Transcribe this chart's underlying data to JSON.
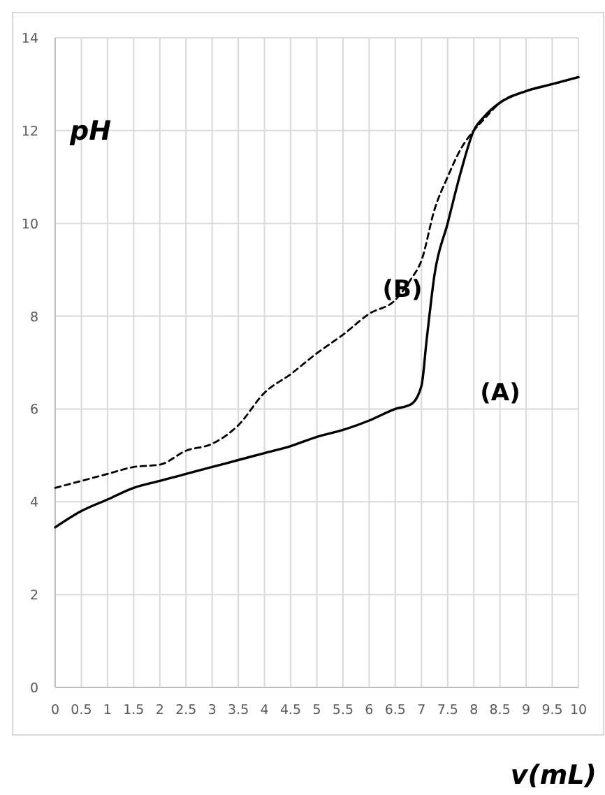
{
  "chart_data": {
    "type": "line",
    "xlabel": "v(mL)",
    "ylabel": "pH",
    "xlim": [
      0,
      10
    ],
    "ylim": [
      0,
      14
    ],
    "xticks": [
      0,
      0.5,
      1,
      1.5,
      2,
      2.5,
      3,
      3.5,
      4,
      4.5,
      5,
      5.5,
      6,
      6.5,
      7,
      7.5,
      8,
      8.5,
      9,
      9.5,
      10
    ],
    "yticks": [
      0,
      2,
      4,
      6,
      8,
      10,
      12,
      14
    ],
    "grid": true,
    "marker": "none",
    "series": [
      {
        "color": "#000000",
        "line_style": "solid",
        "x": [
          0,
          0.5,
          1,
          1.5,
          2,
          2.5,
          3,
          3.5,
          4,
          4.5,
          5,
          5.5,
          6,
          6.5,
          6.8,
          7,
          7.1,
          7.25,
          7.5,
          7.75,
          8,
          8.2,
          8.5,
          9,
          9.5,
          10
        ],
        "values": [
          3.45,
          3.8,
          4.05,
          4.3,
          4.45,
          4.6,
          4.75,
          4.9,
          5.05,
          5.2,
          5.4,
          5.55,
          5.75,
          6.0,
          6.1,
          6.5,
          7.5,
          8.9,
          10.0,
          11.1,
          12.0,
          12.3,
          12.6,
          12.85,
          13.0,
          13.15
        ]
      },
      {
        "color": "#000000",
        "line_style": "dashed",
        "x": [
          0,
          0.5,
          1,
          1.5,
          2,
          2.5,
          3,
          3.5,
          4,
          4.5,
          5,
          5.5,
          6,
          6.5,
          6.8,
          7,
          7.25,
          7.5,
          7.75,
          8,
          8.2,
          8.5,
          9,
          9.5,
          10
        ],
        "values": [
          4.3,
          4.45,
          4.6,
          4.75,
          4.8,
          5.1,
          5.25,
          5.65,
          6.35,
          6.75,
          7.2,
          7.6,
          8.05,
          8.35,
          8.8,
          9.2,
          10.3,
          11.0,
          11.6,
          12.0,
          12.25,
          12.6,
          12.85,
          13.0,
          13.15
        ]
      }
    ],
    "annotations": [
      "(B)",
      "(A)"
    ]
  }
}
